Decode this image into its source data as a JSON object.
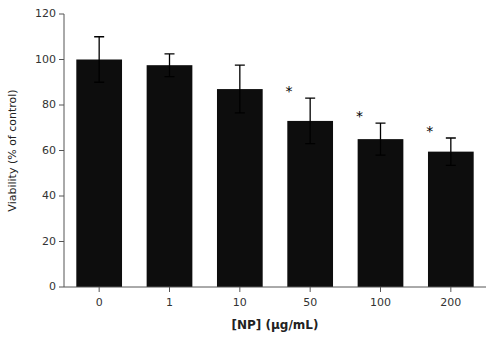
{
  "chart_data": {
    "type": "bar",
    "categories": [
      "0",
      "1",
      "10",
      "50",
      "100",
      "200"
    ],
    "values": [
      100.0,
      97.5,
      87.0,
      73.0,
      65.0,
      59.5
    ],
    "errors": [
      10.0,
      5.0,
      10.5,
      10.0,
      7.0,
      6.0
    ],
    "color": "#0d0d0d",
    "xlabel": "[NP] (μg/mL)",
    "ylabel": "Viability (% of control)",
    "ylim": [
      0,
      120
    ],
    "yticks": [
      0,
      20,
      40,
      60,
      80,
      100,
      120
    ],
    "annotations": [
      {
        "text": "*",
        "category": "50"
      },
      {
        "text": "*",
        "category": "100"
      },
      {
        "text": "*",
        "category": "200"
      }
    ],
    "grid": false
  }
}
